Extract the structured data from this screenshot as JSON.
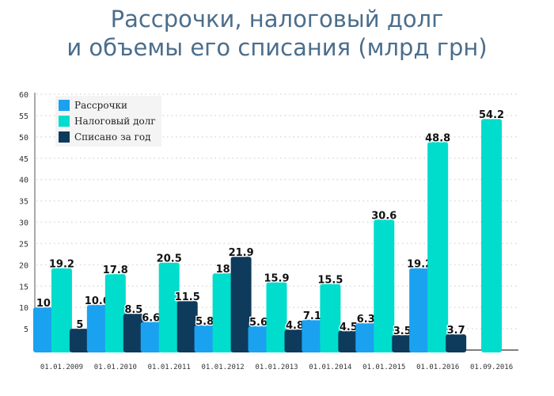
{
  "title": {
    "line1": "Рассрочки, налоговый долг",
    "line2": "и объемы его списания (млрд грн)"
  },
  "colors": {
    "title": "#4b6e8c",
    "series": [
      "#1aa2f0",
      "#00ddcc",
      "#0e3a5c"
    ]
  },
  "chart_data": {
    "type": "bar",
    "title": "Рассрочки, налоговый долг и объемы его списания (млрд грн)",
    "xlabel": "",
    "ylabel": "",
    "ylim": [
      0,
      60
    ],
    "yticks": [
      5,
      10,
      15,
      20,
      25,
      30,
      35,
      40,
      45,
      50,
      55,
      60
    ],
    "grid": true,
    "legend_position": "top-left",
    "categories": [
      "01.01.2009",
      "01.01.2010",
      "01.01.2011",
      "01.01.2012",
      "01.01.2013",
      "01.01.2014",
      "01.01.2015",
      "01.01.2016",
      "01.09.2016"
    ],
    "series": [
      {
        "name": "Рассрочки",
        "values": [
          10,
          10.6,
          6.6,
          5.8,
          5.6,
          7.1,
          6.3,
          19.2,
          null
        ]
      },
      {
        "name": "Налоговый долг",
        "values": [
          19.2,
          17.8,
          20.5,
          18,
          15.9,
          15.5,
          30.6,
          48.8,
          54.2
        ]
      },
      {
        "name": "Списано за год",
        "values": [
          5,
          8.5,
          11.5,
          21.9,
          4.8,
          4.5,
          3.5,
          3.7,
          null
        ]
      }
    ]
  }
}
